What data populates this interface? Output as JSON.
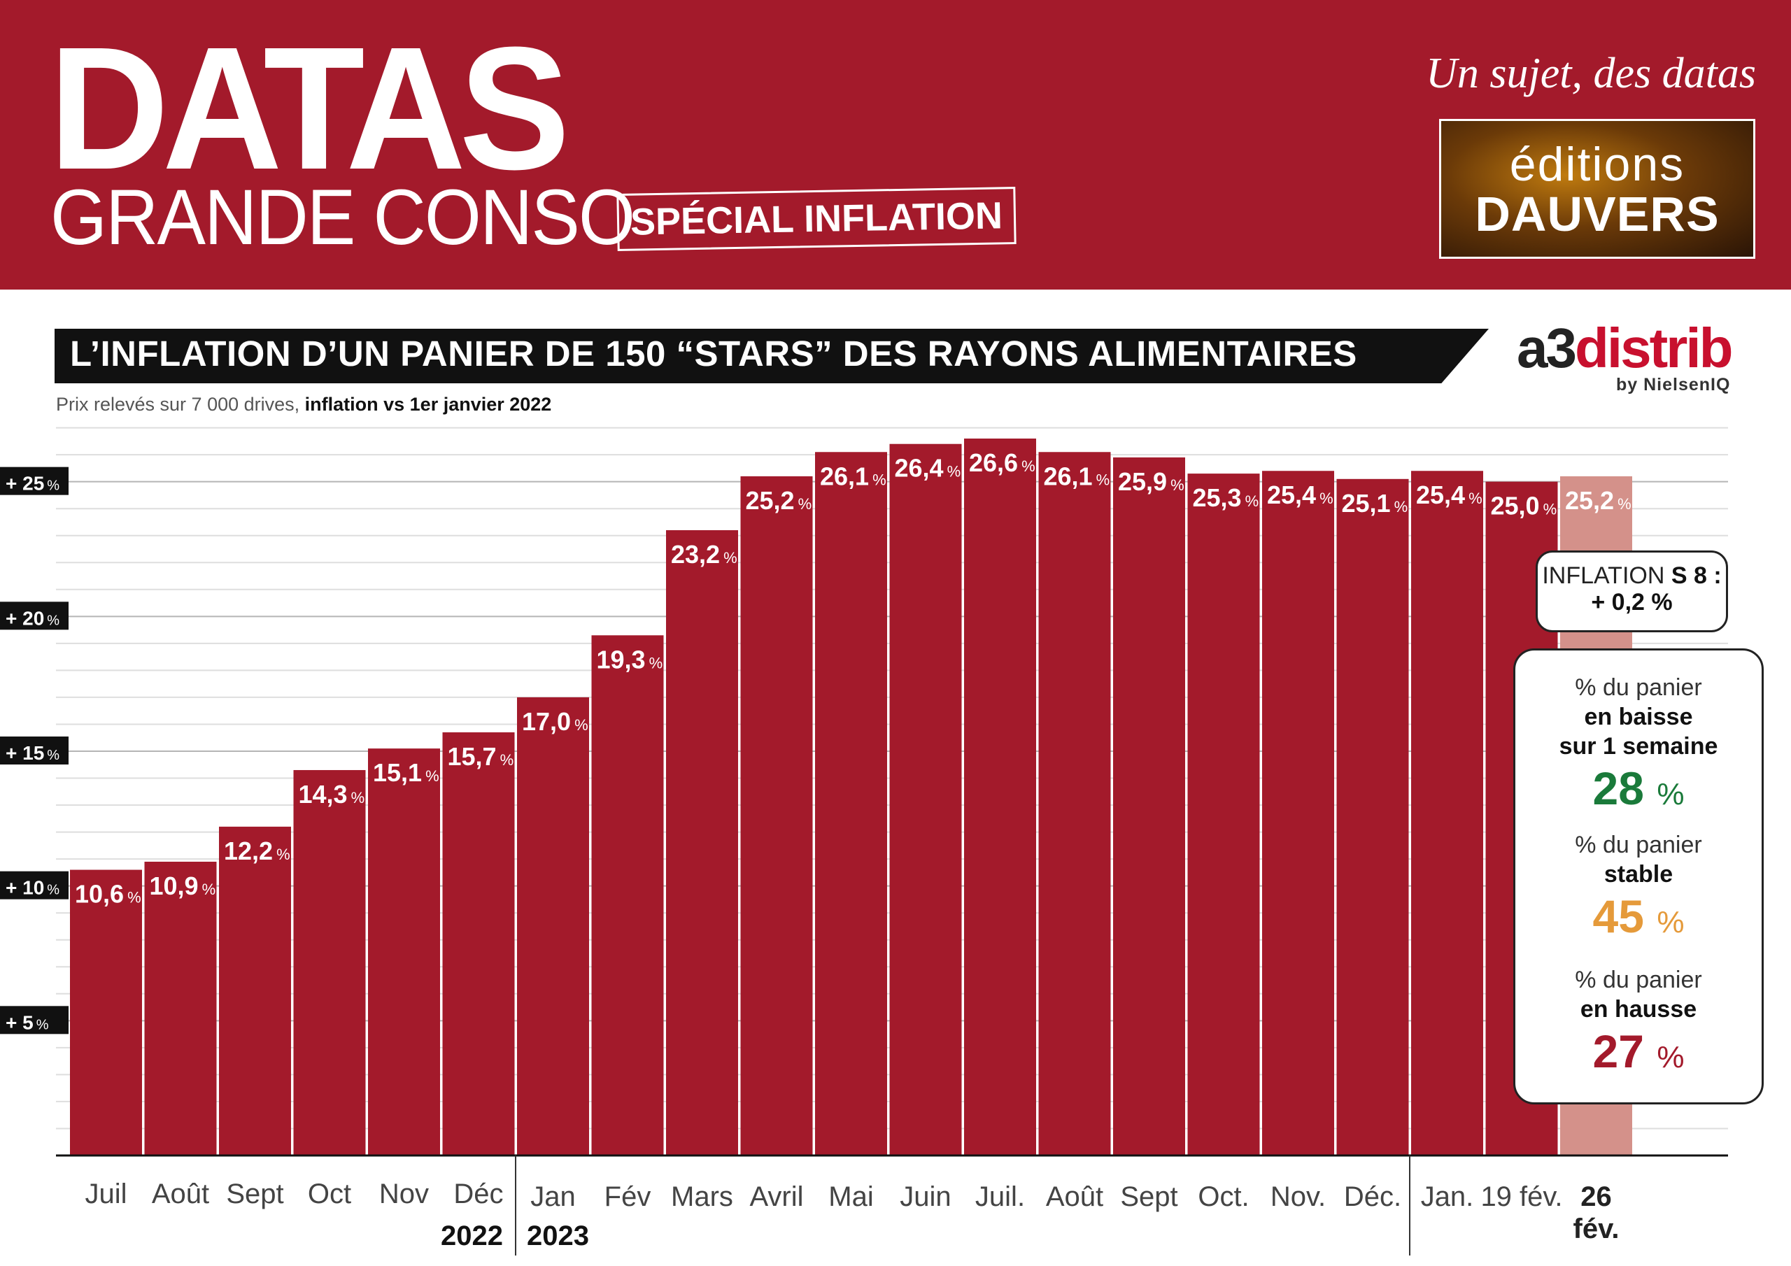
{
  "header": {
    "brand_main": "DATAS",
    "brand_sub": "GRANDE CONSO",
    "special": "SPÉCIAL INFLATION",
    "tagline": "Un sujet, des datas",
    "publisher_line1": "éditions",
    "publisher_line2": "DAUVERS"
  },
  "banner": {
    "title": "L’INFLATION D’UN PANIER DE 150 “STARS” DES RAYONS ALIMENTAIRES",
    "logo_part1": "a3",
    "logo_part2": "distrib",
    "logo_by": "by NielsenIQ",
    "subtitle_plain": "Prix relevés sur 7 000 drives, ",
    "subtitle_bold": "inflation vs 1er janvier 2022"
  },
  "chart_data": {
    "type": "bar",
    "title": "L’INFLATION D’UN PANIER DE 150 “STARS” DES RAYONS ALIMENTAIRES",
    "subtitle": "Prix relevés sur 7 000 drives, inflation vs 1er janvier 2022",
    "categories": [
      "Juil",
      "Août",
      "Sept",
      "Oct",
      "Nov",
      "Déc",
      "Jan",
      "Fév",
      "Mars",
      "Avril",
      "Mai",
      "Juin",
      "Juil.",
      "Août",
      "Sept",
      "Oct.",
      "Nov.",
      "Déc.",
      "Jan.",
      "19 fév.",
      "26 fév."
    ],
    "values": [
      10.6,
      10.9,
      12.2,
      14.3,
      15.1,
      15.7,
      17.0,
      19.3,
      23.2,
      25.2,
      26.1,
      26.4,
      26.6,
      26.1,
      25.9,
      25.3,
      25.4,
      25.1,
      25.4,
      25.0,
      25.2
    ],
    "value_labels": [
      "10,6",
      "10,9",
      "12,2",
      "14,3",
      "15,1",
      "15,7",
      "17,0",
      "19,3",
      "23,2",
      "25,2",
      "26,1",
      "26,4",
      "26,6",
      "26,1",
      "25,9",
      "25,3",
      "25,4",
      "25,1",
      "25,4",
      "25,0",
      "25,2"
    ],
    "value_unit": "%",
    "highlight_index": 20,
    "year_labels": [
      "2022",
      "2023"
    ],
    "y_ticks": [
      {
        "value": 5,
        "label": "+ 5"
      },
      {
        "value": 10,
        "label": "+ 10"
      },
      {
        "value": 15,
        "label": "+ 15"
      },
      {
        "value": 20,
        "label": "+ 20"
      },
      {
        "value": 25,
        "label": "+ 25"
      }
    ],
    "tick_unit": "%",
    "ylim": [
      0,
      26.6
    ],
    "grid": true,
    "colors": {
      "bar": "#a31a2b",
      "highlight": "#d4918a",
      "tick_bg": "#111111"
    }
  },
  "inflation_box": {
    "label": "INFLATION ",
    "week": "S 8 :",
    "value": "+ 0,2 %"
  },
  "stats": [
    {
      "line1": "% du panier",
      "line2": "en baisse",
      "line3": "sur 1 semaine",
      "value": "28",
      "unit": "%",
      "color": "#1a7a3a"
    },
    {
      "line1": "% du panier",
      "line2": "stable",
      "value": "45",
      "unit": "%",
      "color": "#e59a3a"
    },
    {
      "line1": "% du panier",
      "line2": "en hausse",
      "value": "27",
      "unit": "%",
      "color": "#a31a2b"
    }
  ]
}
